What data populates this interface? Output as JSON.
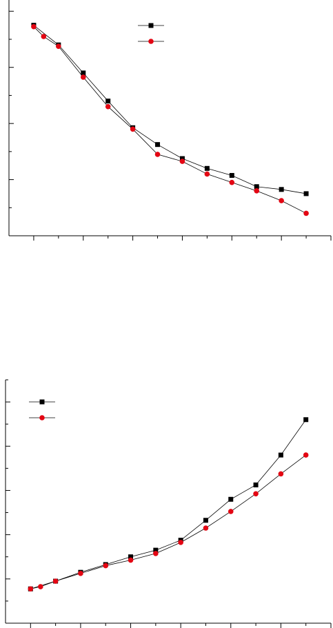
{
  "chart_data": [
    {
      "type": "line",
      "title": "",
      "xlabel": "",
      "ylabel": "",
      "legend": "top-center",
      "grid": false,
      "colors": {
        "series1": "#000000",
        "series2": "#e30613"
      },
      "xlim": [
        0,
        13
      ],
      "ylim": [
        0,
        8.4
      ],
      "series": [
        {
          "marker": "square",
          "color": "#000000",
          "x": [
            1,
            2,
            3,
            4,
            5,
            6,
            7,
            8,
            9,
            10,
            11,
            12
          ],
          "y": [
            7.5,
            6.8,
            5.8,
            4.8,
            3.85,
            3.25,
            2.75,
            2.4,
            2.15,
            1.75,
            1.65,
            1.5
          ]
        },
        {
          "marker": "circle",
          "color": "#e30613",
          "x": [
            1,
            1.4,
            2,
            3,
            4,
            5,
            6,
            7,
            8,
            9,
            10,
            11,
            12
          ],
          "y": [
            7.45,
            7.1,
            6.75,
            5.65,
            4.6,
            3.8,
            2.9,
            2.65,
            2.2,
            1.9,
            1.6,
            1.25,
            0.8
          ]
        }
      ]
    },
    {
      "type": "line",
      "title": "",
      "xlabel": "",
      "ylabel": "",
      "legend": "top-left",
      "grid": false,
      "colors": {
        "series1": "#000000",
        "series2": "#e30613"
      },
      "xlim": [
        0,
        13
      ],
      "ylim": [
        0,
        11
      ],
      "series": [
        {
          "marker": "square",
          "color": "#000000",
          "x": [
            1,
            2,
            3,
            4,
            5,
            6,
            7,
            8,
            9,
            10,
            11,
            12
          ],
          "y": [
            1.55,
            1.9,
            2.3,
            2.65,
            3.0,
            3.3,
            3.75,
            4.65,
            5.6,
            6.25,
            7.6,
            9.2
          ]
        },
        {
          "marker": "circle",
          "color": "#e30613",
          "x": [
            1,
            1.4,
            2,
            3,
            4,
            5,
            6,
            7,
            8,
            9,
            10,
            11,
            12
          ],
          "y": [
            1.55,
            1.65,
            1.9,
            2.25,
            2.6,
            2.85,
            3.15,
            3.65,
            4.3,
            5.05,
            5.85,
            6.75,
            7.6
          ]
        }
      ]
    }
  ]
}
